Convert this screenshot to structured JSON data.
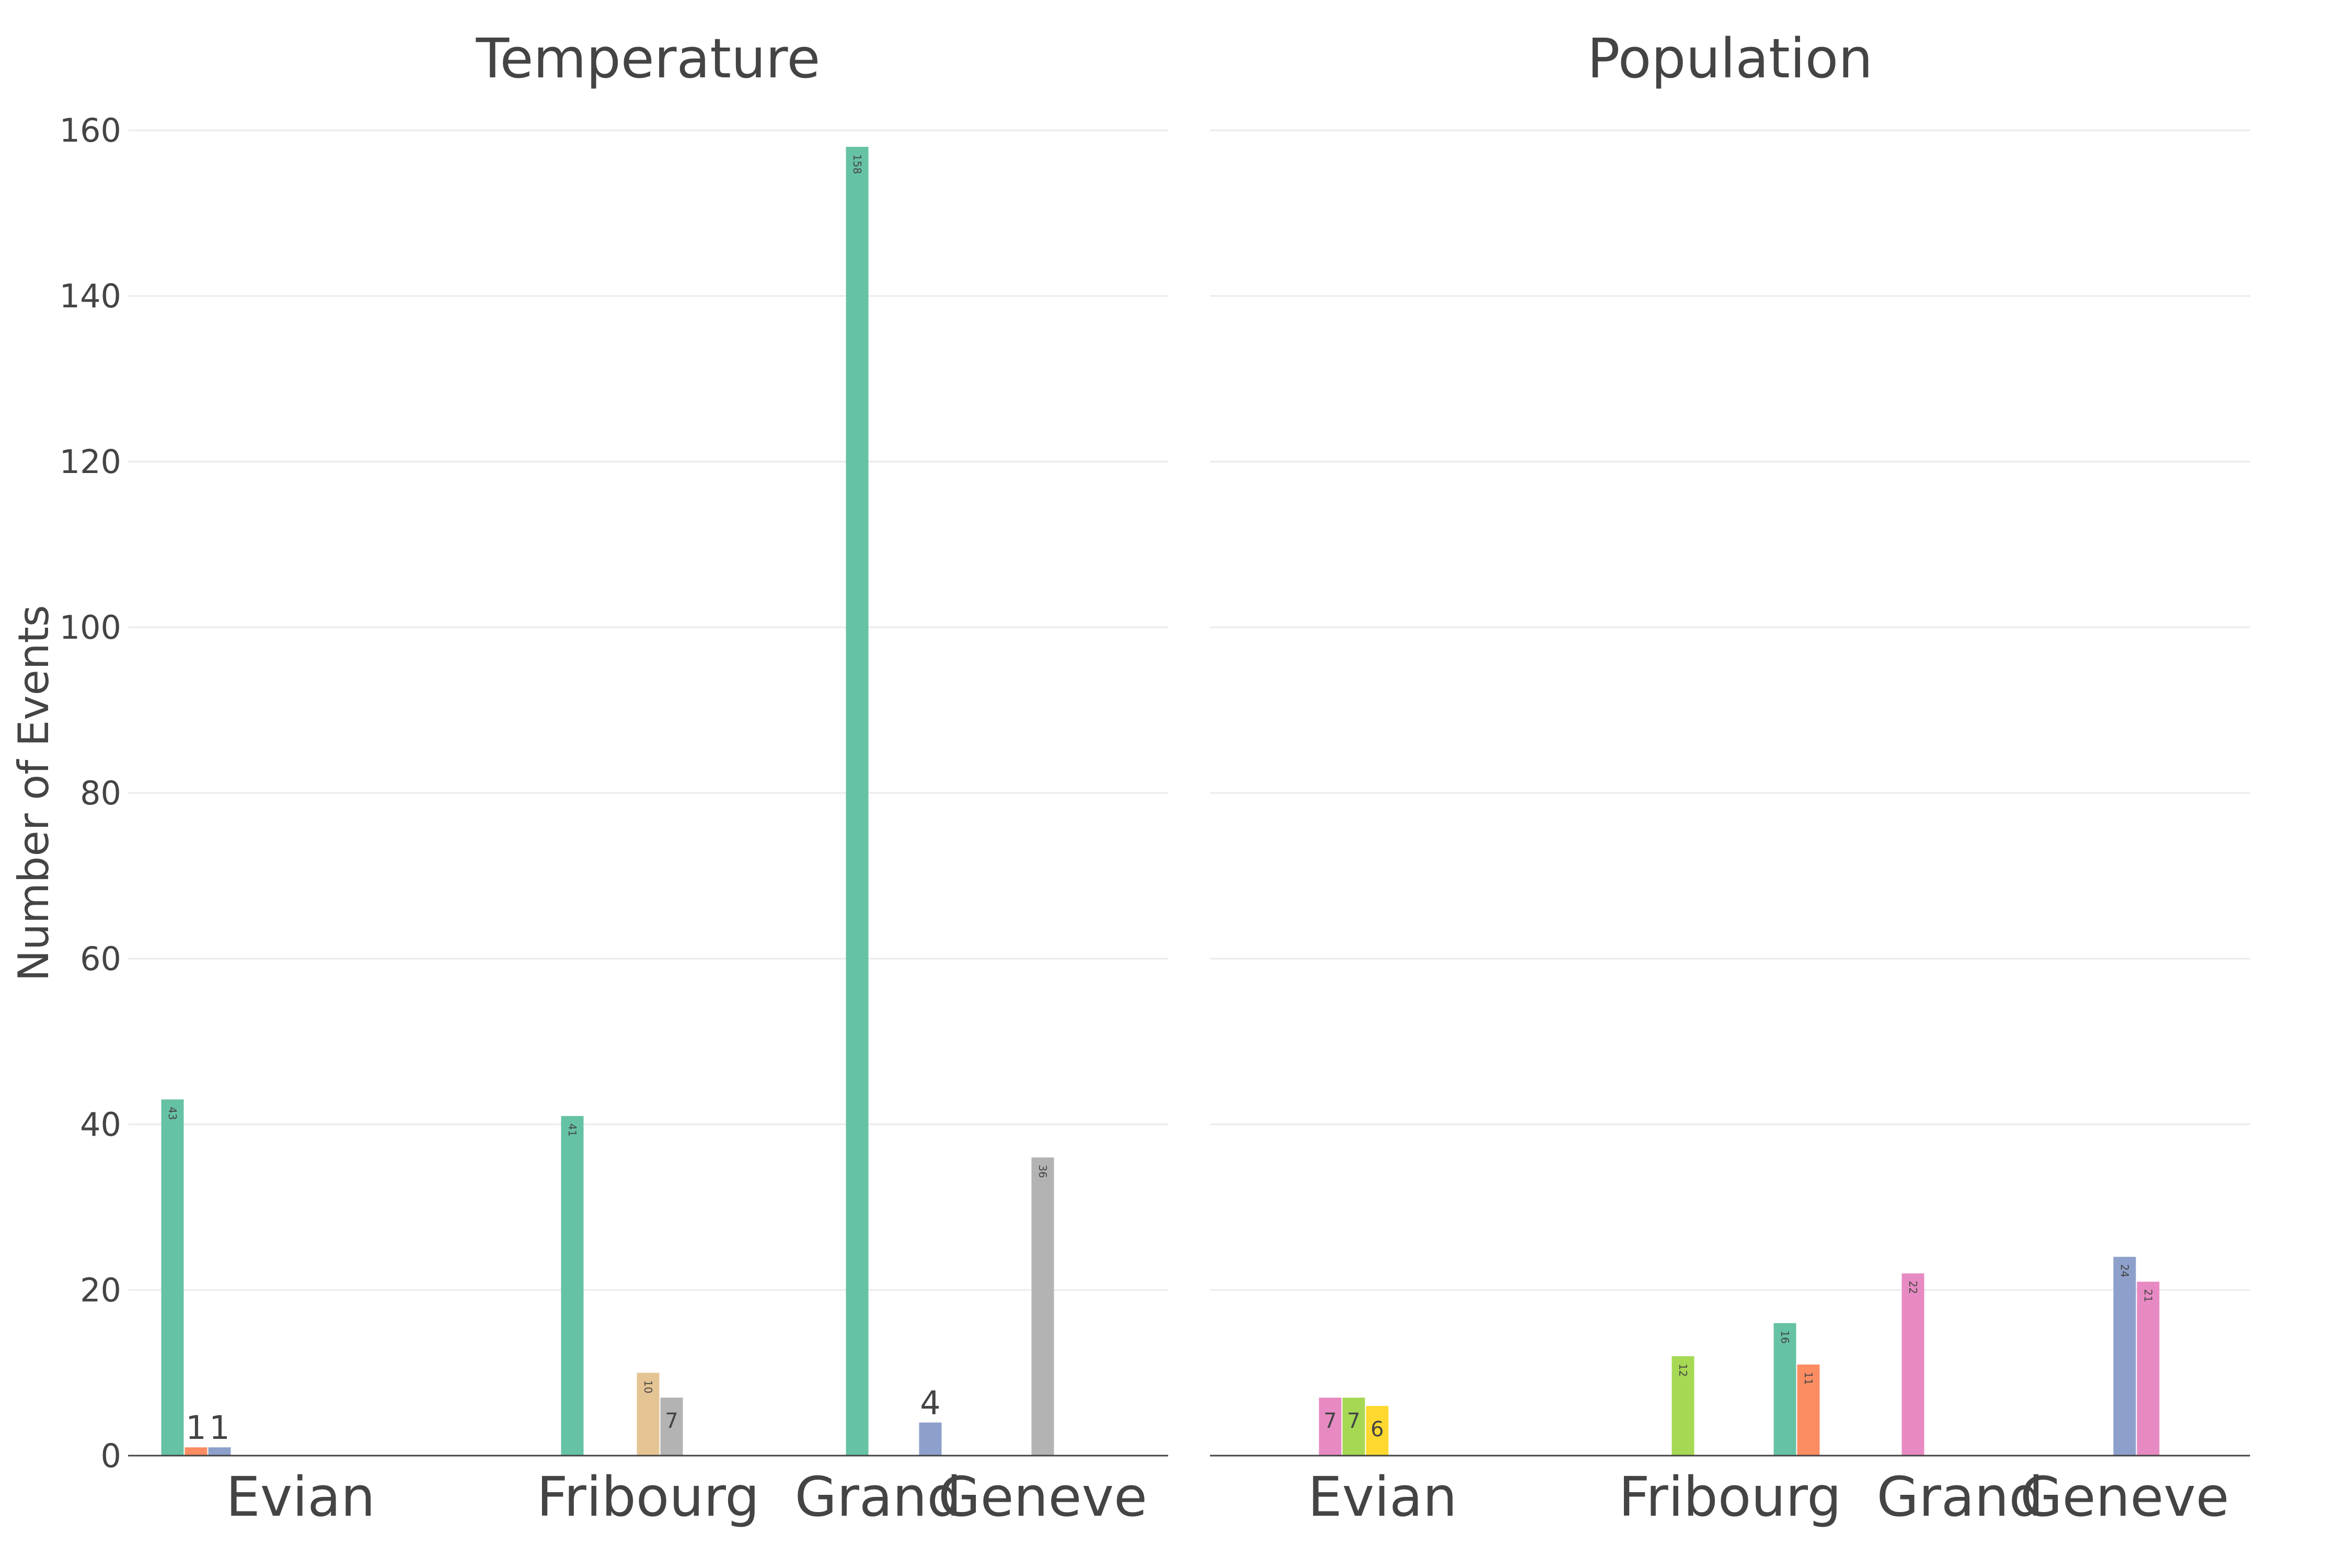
{
  "chart_data": {
    "type": "bar",
    "ylabel": "Number of Events",
    "ylim": [
      0,
      165
    ],
    "yticks": [
      0,
      20,
      40,
      60,
      80,
      100,
      120,
      140,
      160
    ],
    "categories": [
      "Evian",
      "Fribourg",
      "Grand",
      "Geneve"
    ],
    "panels": [
      {
        "title": "Temperature",
        "bars": [
          {
            "category": "Evian",
            "value": 43,
            "color": "#66c2a5",
            "label": "43",
            "label_pos": "inside"
          },
          {
            "category": "Evian",
            "value": 1,
            "color": "#fc8d62",
            "label": "1",
            "label_pos": "outside"
          },
          {
            "category": "Evian",
            "value": 1,
            "color": "#8da0cb",
            "label": "1",
            "label_pos": "outside"
          },
          {
            "category": "Fribourg",
            "value": 41,
            "color": "#66c2a5",
            "label": "41",
            "label_pos": "inside"
          },
          {
            "category": "Fribourg",
            "value": 10,
            "color": "#e5c494",
            "label": "10",
            "label_pos": "inside"
          },
          {
            "category": "Fribourg",
            "value": 7,
            "color": "#b3b3b3",
            "label": "7",
            "label_pos": "inside"
          },
          {
            "category": "Grand",
            "value": 158,
            "color": "#66c2a5",
            "label": "158",
            "label_pos": "inside"
          },
          {
            "category": "Grand",
            "value": 4,
            "color": "#8da0cb",
            "label": "4",
            "label_pos": "outside"
          },
          {
            "category": "Geneve",
            "value": 36,
            "color": "#b3b3b3",
            "label": "36",
            "label_pos": "inside"
          }
        ]
      },
      {
        "title": "Population",
        "bars": [
          {
            "category": "Evian",
            "value": 7,
            "color": "#e78ac3",
            "label": "7",
            "label_pos": "inside"
          },
          {
            "category": "Evian",
            "value": 7,
            "color": "#a6d854",
            "label": "7",
            "label_pos": "inside"
          },
          {
            "category": "Evian",
            "value": 6,
            "color": "#ffd92f",
            "label": "6",
            "label_pos": "inside"
          },
          {
            "category": "Fribourg",
            "value": 12,
            "color": "#a6d854",
            "label": "12",
            "label_pos": "inside"
          },
          {
            "category": "Fribourg",
            "value": 16,
            "color": "#66c2a5",
            "label": "16",
            "label_pos": "inside"
          },
          {
            "category": "Fribourg",
            "value": 11,
            "color": "#fc8d62",
            "label": "11",
            "label_pos": "inside"
          },
          {
            "category": "Grand",
            "value": 22,
            "color": "#e78ac3",
            "label": "22",
            "label_pos": "inside"
          },
          {
            "category": "Geneve",
            "value": 24,
            "color": "#8da0cb",
            "label": "24",
            "label_pos": "inside"
          },
          {
            "category": "Geneve",
            "value": 21,
            "color": "#e78ac3",
            "label": "21",
            "label_pos": "inside"
          }
        ]
      }
    ]
  }
}
